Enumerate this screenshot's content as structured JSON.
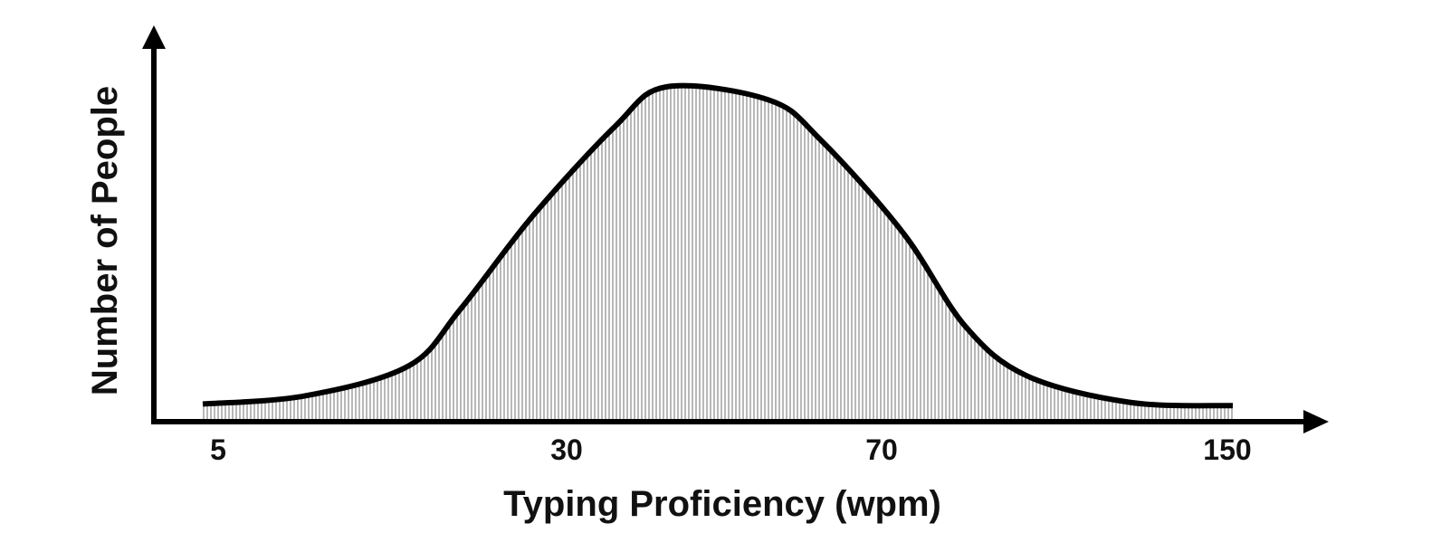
{
  "chart_data": {
    "type": "area",
    "title": "",
    "xlabel": "Typing Proficiency (wpm)",
    "ylabel": "Number of People",
    "x_tick_labels": [
      "5",
      "30",
      "70",
      "150"
    ],
    "y_tick_labels": [],
    "x_scale": "ordinal (non-linear)",
    "curve_shape": "bell-shaped normal distribution",
    "series": [
      {
        "name": "Number of People",
        "x": [
          0.0,
          0.1,
          0.2,
          0.25,
          0.32,
          0.4,
          0.45,
          0.55,
          0.6,
          0.68,
          0.74,
          0.8,
          0.9,
          1.0
        ],
        "values": [
          0.045,
          0.07,
          0.16,
          0.33,
          0.61,
          0.88,
          1.0,
          0.96,
          0.84,
          0.56,
          0.28,
          0.13,
          0.05,
          0.04
        ]
      }
    ],
    "ylim": [
      0,
      1
    ],
    "grid": false,
    "fill": "vertical hatching",
    "colors": {
      "line": "#000000",
      "fill_stroke": "#8a8a8a",
      "axis": "#000000"
    }
  }
}
